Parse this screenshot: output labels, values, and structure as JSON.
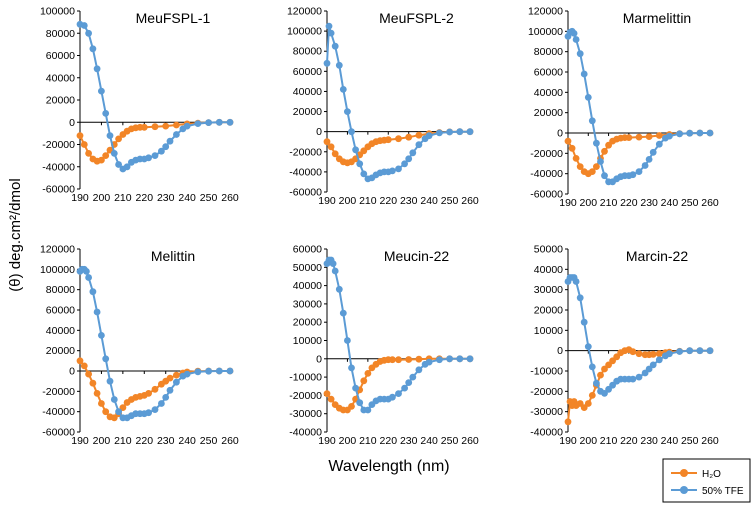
{
  "chart_data": {
    "type": "line",
    "ylabel": "(θ) deg.cm²/dmol",
    "xlabel": "Wavelength (nm)",
    "x_ticks": [
      190,
      200,
      210,
      220,
      230,
      240,
      250,
      260
    ],
    "legend": [
      {
        "name": "H₂O",
        "color": "#f28527"
      },
      {
        "name": "50% TFE",
        "color": "#5b9bd5"
      }
    ],
    "panels": [
      {
        "title": "MeuFSPL-1",
        "ylim": [
          -60000,
          100000
        ],
        "ystep": 20000,
        "series": [
          {
            "name": "H₂O",
            "color": "#f28527",
            "x": [
              190,
              192,
              194,
              196,
              198,
              200,
              202,
              204,
              206,
              208,
              210,
              212,
              214,
              216,
              218,
              220,
              225,
              230,
              235,
              240,
              245,
              250,
              255,
              260
            ],
            "y": [
              -12000,
              -20000,
              -28000,
              -33000,
              -35000,
              -34000,
              -30000,
              -25000,
              -20000,
              -15000,
              -11000,
              -8000,
              -6000,
              -5000,
              -4500,
              -4500,
              -4000,
              -3500,
              -2500,
              -1500,
              -800,
              -300,
              0,
              0
            ]
          },
          {
            "name": "50% TFE",
            "color": "#5b9bd5",
            "x": [
              190,
              192,
              194,
              196,
              198,
              200,
              202,
              204,
              206,
              208,
              210,
              212,
              214,
              216,
              218,
              220,
              222,
              225,
              228,
              230,
              232,
              235,
              238,
              240,
              245,
              250,
              255,
              260
            ],
            "y": [
              88000,
              87000,
              80000,
              66000,
              48000,
              28000,
              8000,
              -12000,
              -28000,
              -38000,
              -42000,
              -40000,
              -36000,
              -34000,
              -33000,
              -33000,
              -32000,
              -30000,
              -26000,
              -22000,
              -17000,
              -11000,
              -6000,
              -3500,
              -1200,
              -300,
              0,
              0
            ]
          }
        ]
      },
      {
        "title": "MeuFSPL-2",
        "ylim": [
          -60000,
          120000
        ],
        "ystep": 20000,
        "series": [
          {
            "name": "H₂O",
            "color": "#f28527",
            "x": [
              190,
              192,
              194,
              196,
              198,
              200,
              202,
              204,
              206,
              208,
              210,
              212,
              214,
              216,
              218,
              220,
              225,
              230,
              235,
              240,
              245,
              250,
              255,
              260
            ],
            "y": [
              -10000,
              -15000,
              -22000,
              -27000,
              -30000,
              -31000,
              -30000,
              -27000,
              -23000,
              -19000,
              -15000,
              -12000,
              -10000,
              -9000,
              -8500,
              -8000,
              -7000,
              -5500,
              -3500,
              -2000,
              -800,
              -200,
              0,
              0
            ]
          },
          {
            "name": "50% TFE",
            "color": "#5b9bd5",
            "x": [
              190,
              191,
              192,
              194,
              196,
              198,
              200,
              202,
              204,
              206,
              208,
              210,
              212,
              214,
              216,
              218,
              220,
              222,
              225,
              228,
              230,
              232,
              235,
              238,
              240,
              245,
              250,
              255,
              260
            ],
            "y": [
              68000,
              105000,
              98000,
              85000,
              66000,
              42000,
              20000,
              0,
              -18000,
              -32000,
              -42000,
              -47000,
              -46000,
              -43000,
              -41000,
              -40000,
              -40000,
              -39000,
              -37000,
              -32000,
              -27000,
              -21000,
              -13000,
              -7000,
              -4000,
              -1200,
              -300,
              0,
              0
            ]
          }
        ]
      },
      {
        "title": "Marmelittin",
        "ylim": [
          -60000,
          120000
        ],
        "ystep": 20000,
        "series": [
          {
            "name": "H₂O",
            "color": "#f28527",
            "x": [
              190,
              192,
              194,
              196,
              198,
              200,
              202,
              204,
              206,
              208,
              210,
              212,
              214,
              216,
              218,
              220,
              225,
              230,
              235,
              240,
              245,
              250,
              255,
              260
            ],
            "y": [
              -8000,
              -15000,
              -25000,
              -33000,
              -38000,
              -40000,
              -38000,
              -33000,
              -25000,
              -18000,
              -12000,
              -8000,
              -6000,
              -5000,
              -4500,
              -4500,
              -4000,
              -3500,
              -2500,
              -1500,
              -700,
              -200,
              0,
              0
            ]
          },
          {
            "name": "50% TFE",
            "color": "#5b9bd5",
            "x": [
              190,
              191,
              192,
              193,
              194,
              196,
              198,
              200,
              202,
              204,
              206,
              208,
              210,
              212,
              214,
              216,
              218,
              220,
              222,
              225,
              228,
              230,
              232,
              235,
              238,
              240,
              245,
              250,
              255,
              260
            ],
            "y": [
              95000,
              99000,
              100000,
              98000,
              92000,
              78000,
              58000,
              35000,
              12000,
              -10000,
              -28000,
              -42000,
              -48000,
              -48000,
              -45000,
              -43000,
              -42000,
              -42000,
              -41000,
              -38000,
              -32000,
              -26000,
              -19000,
              -11000,
              -5000,
              -3000,
              -800,
              -200,
              0,
              0
            ]
          }
        ]
      },
      {
        "title": "Melittin",
        "ylim": [
          -60000,
          120000
        ],
        "ystep": 20000,
        "series": [
          {
            "name": "H₂O",
            "color": "#f28527",
            "x": [
              190,
              192,
              194,
              196,
              198,
              200,
              202,
              204,
              206,
              208,
              210,
              212,
              214,
              216,
              218,
              220,
              222,
              225,
              228,
              230,
              232,
              235,
              238,
              240,
              245,
              250,
              255,
              260
            ],
            "y": [
              10000,
              5000,
              -3000,
              -12000,
              -22000,
              -32000,
              -40000,
              -45000,
              -46000,
              -42000,
              -36000,
              -31000,
              -28000,
              -26000,
              -25000,
              -24000,
              -22000,
              -18000,
              -13000,
              -10000,
              -7000,
              -4000,
              -2000,
              -1000,
              -200,
              0,
              0,
              0
            ]
          },
          {
            "name": "50% TFE",
            "color": "#5b9bd5",
            "x": [
              190,
              191,
              192,
              193,
              194,
              196,
              198,
              200,
              202,
              204,
              206,
              208,
              210,
              212,
              214,
              216,
              218,
              220,
              222,
              225,
              228,
              230,
              232,
              235,
              238,
              240,
              245,
              250,
              255,
              260
            ],
            "y": [
              98000,
              100000,
              100000,
              98000,
              92000,
              78000,
              58000,
              35000,
              12000,
              -10000,
              -28000,
              -40000,
              -46000,
              -46000,
              -44000,
              -42000,
              -42000,
              -42000,
              -41000,
              -38000,
              -32000,
              -26000,
              -19000,
              -11000,
              -5000,
              -3000,
              -800,
              -200,
              0,
              0
            ]
          }
        ]
      },
      {
        "title": "Meucin-22",
        "ylim": [
          -40000,
          60000
        ],
        "ystep": 10000,
        "series": [
          {
            "name": "H₂O",
            "color": "#f28527",
            "x": [
              190,
              192,
              194,
              196,
              198,
              200,
              202,
              204,
              206,
              208,
              210,
              212,
              214,
              216,
              218,
              220,
              222,
              225,
              230,
              235,
              240,
              245,
              250,
              255,
              260
            ],
            "y": [
              -19000,
              -22000,
              -25000,
              -27000,
              -28000,
              -28000,
              -26000,
              -22000,
              -17000,
              -12000,
              -8000,
              -5000,
              -3000,
              -1500,
              -800,
              -500,
              -500,
              -500,
              -400,
              -200,
              0,
              0,
              0,
              0,
              0
            ]
          },
          {
            "name": "50% TFE",
            "color": "#5b9bd5",
            "x": [
              190,
              191,
              192,
              193,
              194,
              196,
              198,
              200,
              202,
              204,
              206,
              208,
              210,
              212,
              214,
              216,
              218,
              220,
              222,
              225,
              228,
              230,
              232,
              235,
              238,
              240,
              245,
              250,
              255,
              260
            ],
            "y": [
              52000,
              54000,
              54000,
              52000,
              48000,
              38000,
              25000,
              10000,
              -5000,
              -16000,
              -24000,
              -28000,
              -28000,
              -25000,
              -23000,
              -22000,
              -22000,
              -22000,
              -21000,
              -19000,
              -16000,
              -13000,
              -10000,
              -6000,
              -3000,
              -1800,
              -500,
              0,
              0,
              0
            ]
          }
        ]
      },
      {
        "title": "Marcin-22",
        "ylim": [
          -40000,
          50000
        ],
        "ystep": 10000,
        "series": [
          {
            "name": "H₂O",
            "color": "#f28527",
            "x": [
              190,
              191,
              192,
              193,
              194,
              196,
              198,
              200,
              202,
              204,
              206,
              208,
              210,
              212,
              214,
              216,
              218,
              220,
              222,
              225,
              228,
              230,
              232,
              235,
              238,
              240,
              245,
              250,
              255,
              260
            ],
            "y": [
              -35000,
              -25000,
              -27000,
              -25000,
              -27000,
              -26000,
              -28000,
              -26000,
              -22000,
              -17000,
              -12000,
              -9000,
              -7000,
              -5000,
              -3000,
              -1000,
              0,
              500,
              -500,
              -1500,
              -2000,
              -2000,
              -1800,
              -1500,
              -1000,
              -700,
              -300,
              0,
              0,
              0
            ]
          },
          {
            "name": "50% TFE",
            "color": "#5b9bd5",
            "x": [
              190,
              191,
              192,
              193,
              194,
              196,
              198,
              200,
              202,
              204,
              206,
              208,
              210,
              212,
              214,
              216,
              218,
              220,
              222,
              225,
              228,
              230,
              232,
              235,
              238,
              240,
              245,
              250,
              255,
              260
            ],
            "y": [
              34000,
              36000,
              36000,
              36000,
              34000,
              26000,
              14000,
              2000,
              -8000,
              -16000,
              -20000,
              -21000,
              -19000,
              -17000,
              -15000,
              -14000,
              -14000,
              -14000,
              -14000,
              -13000,
              -11000,
              -9000,
              -7000,
              -4500,
              -2500,
              -1500,
              -400,
              0,
              0,
              0
            ]
          }
        ]
      }
    ]
  }
}
